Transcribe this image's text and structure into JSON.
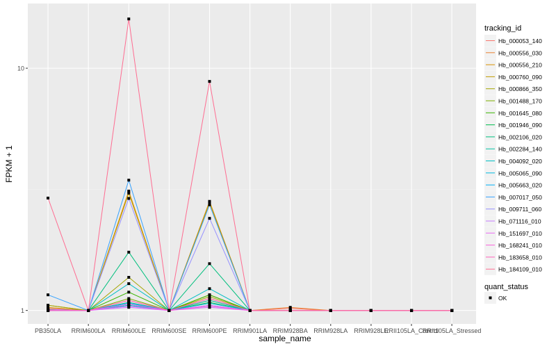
{
  "chart_data": {
    "type": "line",
    "xlabel": "sample_name",
    "ylabel": "FPKM + 1",
    "y_scale": "log10",
    "ylim": [
      0.88,
      18.5
    ],
    "y_ticks": [
      1,
      10
    ],
    "y_tick_labels": [
      "1",
      "10"
    ],
    "grid": true,
    "legend_position": "right",
    "categories": [
      "PB350LA",
      "RRIM600LA",
      "RRIM600LE",
      "RRIM600SE",
      "RRIM600PE",
      "RRIM901LA",
      "RRIM928BA",
      "RRIM928LA",
      "RRIM928LE",
      "RRII105LA_Control",
      "RRII105LA_Stressed"
    ],
    "color_legend_title": "tracking_id",
    "shape_legend_title": "quant_status",
    "shape_legend_items": [
      "OK"
    ],
    "series": [
      {
        "name": "Hb_000053_140",
        "color": "#F8766D",
        "values": [
          1.02,
          1,
          1.08,
          1,
          1.1,
          1,
          1.02,
          1,
          1,
          1,
          1
        ]
      },
      {
        "name": "Hb_000556_030",
        "color": "#EA8331",
        "values": [
          1.01,
          1,
          1.1,
          1,
          1.12,
          1,
          1.03,
          1,
          1,
          1,
          1
        ]
      },
      {
        "name": "Hb_000556_210",
        "color": "#D89000",
        "values": [
          1.03,
          1,
          3.11,
          1,
          2.82,
          1,
          1,
          1,
          1,
          1,
          1
        ]
      },
      {
        "name": "Hb_000760_090",
        "color": "#C09B00",
        "values": [
          1.05,
          1,
          3.05,
          1,
          2.78,
          1,
          1,
          1,
          1,
          1,
          1
        ]
      },
      {
        "name": "Hb_000866_350",
        "color": "#A3A500",
        "values": [
          1.05,
          1,
          1.37,
          1,
          1.14,
          1,
          1,
          1,
          1,
          1,
          1
        ]
      },
      {
        "name": "Hb_001488_170",
        "color": "#7CAE00",
        "values": [
          1.01,
          1,
          1.12,
          1,
          1.16,
          1,
          1,
          1,
          1,
          1,
          1
        ]
      },
      {
        "name": "Hb_001645_080",
        "color": "#39B600",
        "values": [
          1.01,
          1,
          1.19,
          1,
          1.16,
          1,
          1,
          1,
          1,
          1,
          1
        ]
      },
      {
        "name": "Hb_001946_090",
        "color": "#00BB4E",
        "values": [
          1,
          1,
          1.05,
          1,
          1.08,
          1,
          1,
          1,
          1,
          1,
          1
        ]
      },
      {
        "name": "Hb_002106_020",
        "color": "#00BF7D",
        "values": [
          1,
          1,
          1.74,
          1,
          1.56,
          1,
          1,
          1,
          1,
          1,
          1
        ]
      },
      {
        "name": "Hb_002284_140",
        "color": "#00C1A3",
        "values": [
          1,
          1,
          1.08,
          1,
          1.1,
          1,
          1,
          1,
          1,
          1,
          1
        ]
      },
      {
        "name": "Hb_004092_020",
        "color": "#00BFC4",
        "values": [
          1,
          1,
          1.29,
          1,
          1.23,
          1,
          1,
          1,
          1,
          1,
          1
        ]
      },
      {
        "name": "Hb_005065_090",
        "color": "#00BAE0",
        "values": [
          1,
          1,
          1.05,
          1,
          1.07,
          1,
          1,
          1,
          1,
          1,
          1
        ]
      },
      {
        "name": "Hb_005663_020",
        "color": "#00B0F6",
        "values": [
          1,
          1,
          1.07,
          1,
          1.05,
          1,
          1,
          1,
          1,
          1,
          1
        ]
      },
      {
        "name": "Hb_007017_050",
        "color": "#35A2FF",
        "values": [
          1.16,
          1,
          3.45,
          1,
          2.73,
          1,
          1,
          1,
          1,
          1,
          1
        ]
      },
      {
        "name": "Hb_009711_060",
        "color": "#9590FF",
        "values": [
          1,
          1,
          2.9,
          1,
          2.4,
          1,
          1,
          1,
          1,
          1,
          1
        ]
      },
      {
        "name": "Hb_071116_010",
        "color": "#C77CFF",
        "values": [
          1.01,
          1,
          1.03,
          1,
          1.03,
          1,
          1,
          1,
          1,
          1,
          1
        ]
      },
      {
        "name": "Hb_151697_010",
        "color": "#E76BF3",
        "values": [
          1,
          1,
          1.04,
          1,
          1.05,
          1,
          1,
          1,
          1,
          1,
          1
        ]
      },
      {
        "name": "Hb_168241_010",
        "color": "#FA62DB",
        "values": [
          1,
          1,
          1.06,
          1,
          1.04,
          1,
          1,
          1,
          1,
          1,
          1
        ]
      },
      {
        "name": "Hb_183658_010",
        "color": "#FF62BC",
        "values": [
          1,
          1,
          1.1,
          1,
          1.12,
          1,
          1,
          1,
          1,
          1,
          1
        ]
      },
      {
        "name": "Hb_184109_010",
        "color": "#FF6C91",
        "values": [
          2.91,
          1,
          15.97,
          1,
          8.82,
          1,
          1,
          1,
          1,
          1,
          1
        ]
      }
    ]
  }
}
